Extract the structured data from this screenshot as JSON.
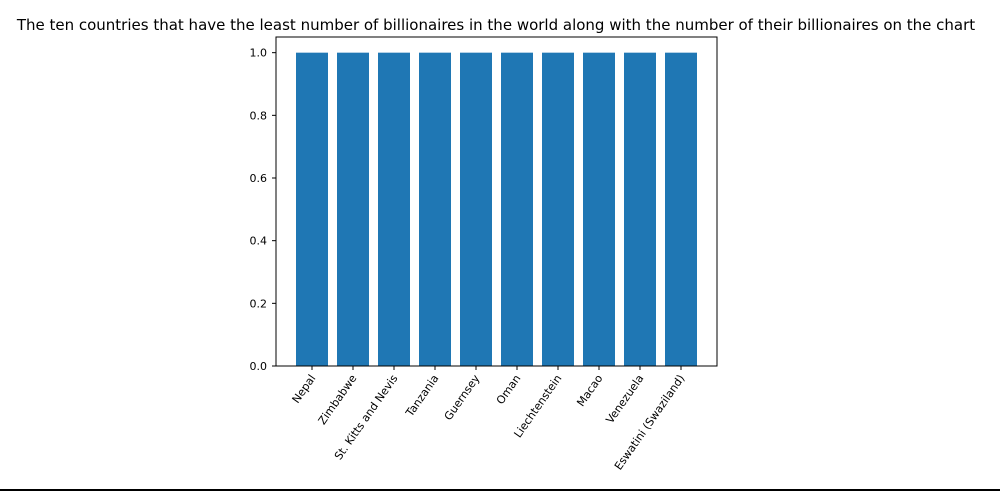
{
  "chart_data": {
    "type": "bar",
    "title": "The ten countries that have the least number of billionaires in the world along with the number of their billionaires on the chart",
    "xlabel": "",
    "ylabel": "",
    "categories": [
      "Nepal",
      "Zimbabwe",
      "St. Kitts and Nevis",
      "Tanzania",
      "Guernsey",
      "Oman",
      "Liechtenstein",
      "Macao",
      "Venezuela",
      "Eswatini (Swaziland)"
    ],
    "values": [
      1,
      1,
      1,
      1,
      1,
      1,
      1,
      1,
      1,
      1
    ],
    "ylim": [
      0,
      1.05
    ],
    "yticks": [
      "0.0",
      "0.2",
      "0.4",
      "0.6",
      "0.8",
      "1.0"
    ],
    "grid": false,
    "legend": "none",
    "colors": {
      "bar": "#1f77b4",
      "axis": "#000000",
      "text": "#000000"
    }
  }
}
